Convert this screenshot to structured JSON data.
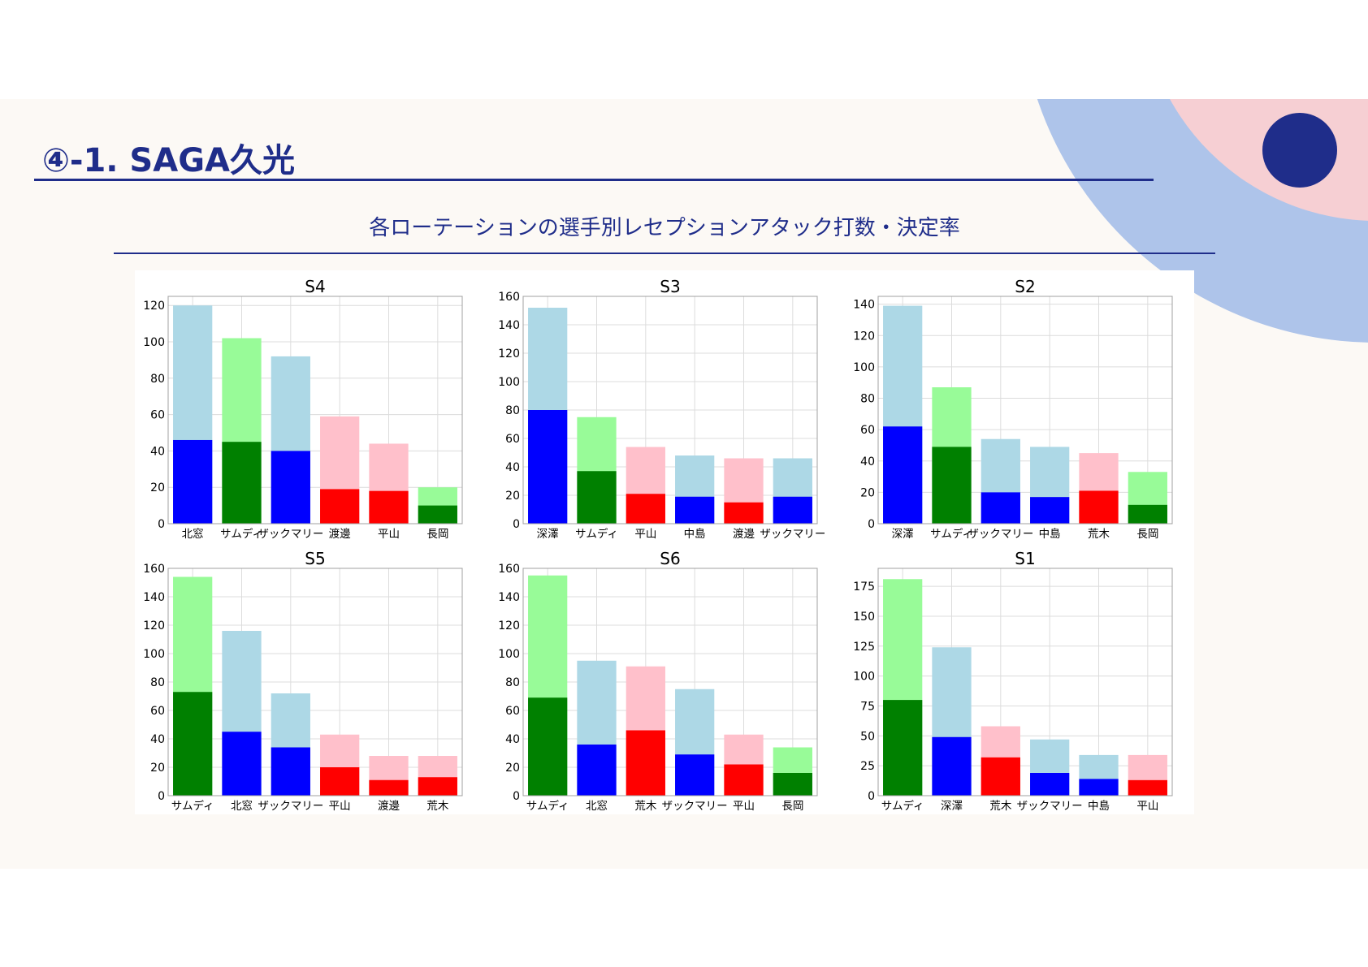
{
  "header": {
    "title": "④-1. SAGA久光",
    "subtitle": "各ローテーションの選手別レセプションアタック打数・決定率"
  },
  "colors": {
    "band": "#fcf9f5",
    "navy": "#1f2d8a",
    "deco_light_blue": "#aec4ea",
    "deco_pink": "#f6cfd3",
    "palette": {
      "blue": [
        "#add8e6",
        "#0000ff"
      ],
      "green": [
        "#98fb98",
        "#008000"
      ],
      "red": [
        "#ffc0cb",
        "#ff0000"
      ]
    }
  },
  "chart_data": [
    {
      "type": "bar",
      "title": "S4",
      "ylim": [
        0,
        125
      ],
      "yticks": [
        0,
        20,
        40,
        60,
        80,
        100,
        120
      ],
      "categories": [
        "北窓",
        "サムディ",
        "ザックマリー",
        "渡邊",
        "平山",
        "長岡"
      ],
      "series": [
        {
          "values": [
            120,
            102,
            92,
            59,
            44,
            20
          ]
        },
        {
          "values": [
            46,
            45,
            40,
            19,
            18,
            10
          ]
        }
      ],
      "bar_colors": [
        "blue",
        "green",
        "blue",
        "red",
        "red",
        "green"
      ],
      "grid": true
    },
    {
      "type": "bar",
      "title": "S3",
      "ylim": [
        0,
        160
      ],
      "yticks": [
        0,
        20,
        40,
        60,
        80,
        100,
        120,
        140,
        160
      ],
      "categories": [
        "深澤",
        "サムディ",
        "平山",
        "中島",
        "渡邊",
        "ザックマリー"
      ],
      "series": [
        {
          "values": [
            152,
            75,
            54,
            48,
            46,
            46
          ]
        },
        {
          "values": [
            80,
            37,
            21,
            19,
            15,
            19
          ]
        }
      ],
      "bar_colors": [
        "blue",
        "green",
        "red",
        "blue",
        "red",
        "blue"
      ],
      "grid": true
    },
    {
      "type": "bar",
      "title": "S2",
      "ylim": [
        0,
        145
      ],
      "yticks": [
        0,
        20,
        40,
        60,
        80,
        100,
        120,
        140
      ],
      "categories": [
        "深澤",
        "サムディ",
        "ザックマリー",
        "中島",
        "荒木",
        "長岡"
      ],
      "series": [
        {
          "values": [
            139,
            87,
            54,
            49,
            45,
            33
          ]
        },
        {
          "values": [
            62,
            49,
            20,
            17,
            21,
            12
          ]
        }
      ],
      "bar_colors": [
        "blue",
        "green",
        "blue",
        "blue",
        "red",
        "green"
      ],
      "grid": true
    },
    {
      "type": "bar",
      "title": "S5",
      "ylim": [
        0,
        160
      ],
      "yticks": [
        0,
        20,
        40,
        60,
        80,
        100,
        120,
        140,
        160
      ],
      "categories": [
        "サムディ",
        "北窓",
        "ザックマリー",
        "平山",
        "渡邊",
        "荒木"
      ],
      "series": [
        {
          "values": [
            154,
            116,
            72,
            43,
            28,
            28
          ]
        },
        {
          "values": [
            73,
            45,
            34,
            20,
            11,
            13
          ]
        }
      ],
      "bar_colors": [
        "green",
        "blue",
        "blue",
        "red",
        "red",
        "red"
      ],
      "grid": true
    },
    {
      "type": "bar",
      "title": "S6",
      "ylim": [
        0,
        160
      ],
      "yticks": [
        0,
        20,
        40,
        60,
        80,
        100,
        120,
        140,
        160
      ],
      "categories": [
        "サムディ",
        "北窓",
        "荒木",
        "ザックマリー",
        "平山",
        "長岡"
      ],
      "series": [
        {
          "values": [
            155,
            95,
            91,
            75,
            43,
            34
          ]
        },
        {
          "values": [
            69,
            36,
            46,
            29,
            22,
            16
          ]
        }
      ],
      "bar_colors": [
        "green",
        "blue",
        "red",
        "blue",
        "red",
        "green"
      ],
      "grid": true
    },
    {
      "type": "bar",
      "title": "S1",
      "ylim": [
        0,
        190
      ],
      "yticks": [
        0,
        25,
        50,
        75,
        100,
        125,
        150,
        175
      ],
      "categories": [
        "サムディ",
        "深澤",
        "荒木",
        "ザックマリー",
        "中島",
        "平山"
      ],
      "series": [
        {
          "values": [
            181,
            124,
            58,
            47,
            34,
            34
          ]
        },
        {
          "values": [
            80,
            49,
            32,
            19,
            14,
            13
          ]
        }
      ],
      "bar_colors": [
        "green",
        "blue",
        "red",
        "blue",
        "blue",
        "red"
      ],
      "grid": true
    }
  ]
}
